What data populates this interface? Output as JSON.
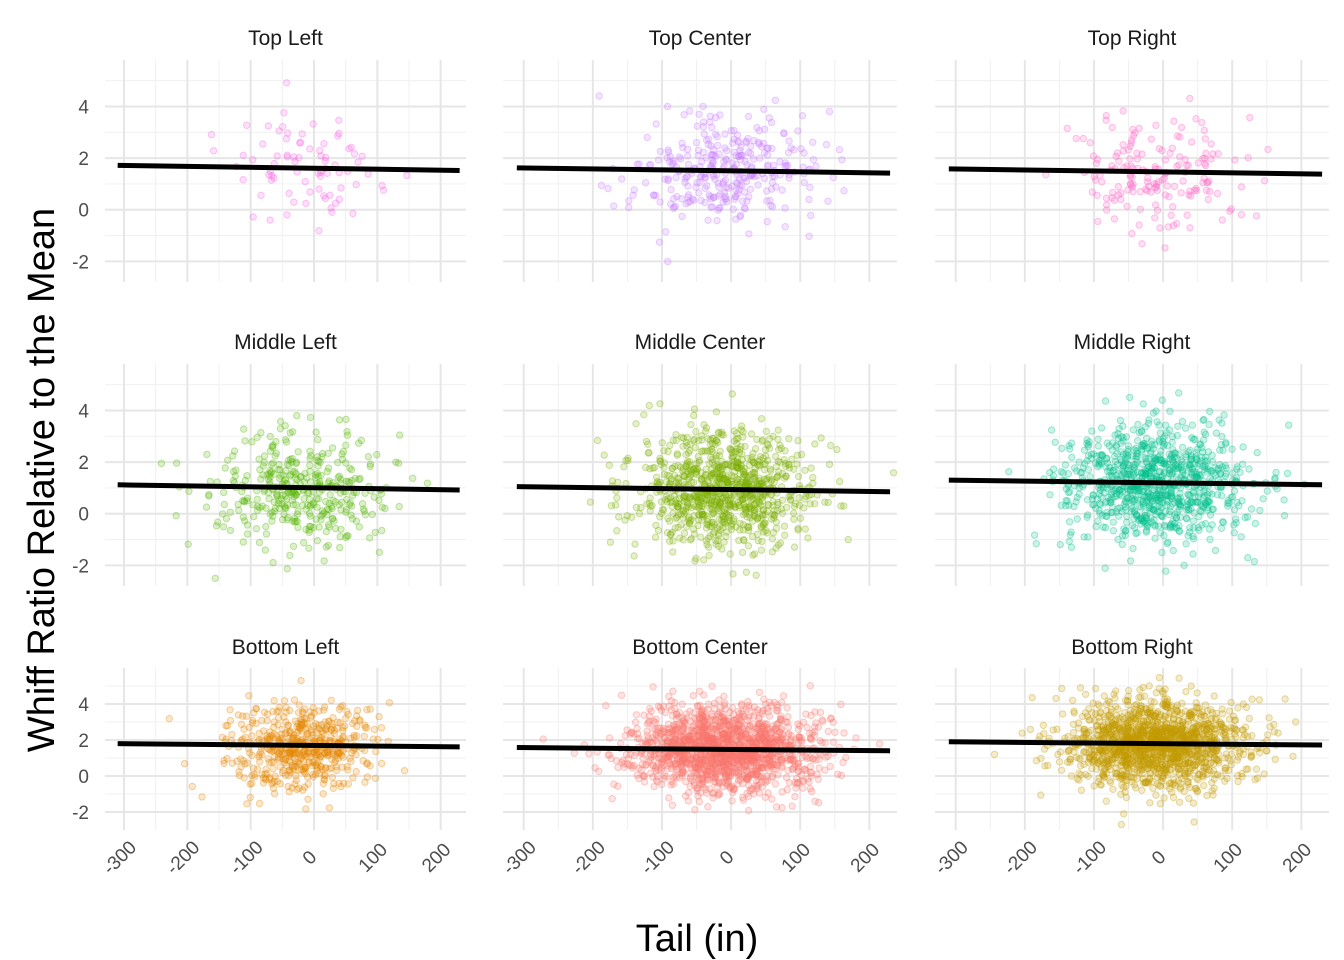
{
  "chart_data": {
    "type": "scatter",
    "xlabel": "Tail (in)",
    "ylabel": "Whiff Ratio Relative to the Mean",
    "x_ticks": [
      -300,
      -200,
      -100,
      0,
      100,
      200
    ],
    "x_tick_labels": [
      "-300",
      "-200",
      "-100",
      "0",
      "100",
      "200"
    ],
    "xlim": [
      -330,
      240
    ],
    "y_ticks": [
      -2,
      0,
      2,
      4
    ],
    "y_tick_labels": [
      "-2",
      "0",
      "2",
      "4"
    ],
    "grid": true,
    "point_opacity": 0.2,
    "panels": [
      {
        "title": "Top Left",
        "row": "Top",
        "col": "Left",
        "color": "#F564E3",
        "n_points": 80,
        "center": {
          "x": -10,
          "y": 1.6
        },
        "spread": {
          "x": 60,
          "y": 1.1
        },
        "ylim": [
          -2.8,
          5.8
        ],
        "fit": {
          "x": [
            -310,
            230
          ],
          "y": [
            1.72,
            1.52
          ]
        }
      },
      {
        "title": "Top Center",
        "row": "Top",
        "col": "Center",
        "color": "#C77CFF",
        "n_points": 320,
        "center": {
          "x": -10,
          "y": 1.5
        },
        "spread": {
          "x": 65,
          "y": 1.1
        },
        "ylim": [
          -2.8,
          5.8
        ],
        "fit": {
          "x": [
            -310,
            230
          ],
          "y": [
            1.62,
            1.42
          ]
        }
      },
      {
        "title": "Top Right",
        "row": "Top",
        "col": "Right",
        "color": "#FF61C3",
        "n_points": 170,
        "center": {
          "x": -10,
          "y": 1.3
        },
        "spread": {
          "x": 65,
          "y": 1.2
        },
        "ylim": [
          -2.8,
          5.8
        ],
        "fit": {
          "x": [
            -310,
            230
          ],
          "y": [
            1.58,
            1.38
          ]
        }
      },
      {
        "title": "Middle Left",
        "row": "Middle",
        "col": "Left",
        "color": "#53B400",
        "n_points": 380,
        "center": {
          "x": -15,
          "y": 1.0
        },
        "spread": {
          "x": 70,
          "y": 1.1
        },
        "ylim": [
          -2.8,
          5.8
        ],
        "fit": {
          "x": [
            -310,
            230
          ],
          "y": [
            1.12,
            0.92
          ]
        }
      },
      {
        "title": "Middle Center",
        "row": "Middle",
        "col": "Center",
        "color": "#7CAE00",
        "n_points": 900,
        "center": {
          "x": -10,
          "y": 0.9
        },
        "spread": {
          "x": 65,
          "y": 1.1
        },
        "ylim": [
          -2.8,
          5.8
        ],
        "fit": {
          "x": [
            -310,
            230
          ],
          "y": [
            1.05,
            0.85
          ]
        }
      },
      {
        "title": "Middle Right",
        "row": "Middle",
        "col": "Right",
        "color": "#00C08B",
        "n_points": 900,
        "center": {
          "x": -10,
          "y": 1.2
        },
        "spread": {
          "x": 65,
          "y": 1.1
        },
        "ylim": [
          -2.8,
          5.8
        ],
        "fit": {
          "x": [
            -310,
            230
          ],
          "y": [
            1.3,
            1.12
          ]
        }
      },
      {
        "title": "Bottom Left",
        "row": "Bottom",
        "col": "Left",
        "color": "#E58700",
        "n_points": 520,
        "center": {
          "x": -25,
          "y": 1.6
        },
        "spread": {
          "x": 60,
          "y": 1.2
        },
        "ylim": [
          -3.0,
          6.0
        ],
        "fit": {
          "x": [
            -310,
            230
          ],
          "y": [
            1.8,
            1.62
          ]
        }
      },
      {
        "title": "Bottom Center",
        "row": "Bottom",
        "col": "Center",
        "color": "#F8766D",
        "n_points": 1500,
        "center": {
          "x": -10,
          "y": 1.5
        },
        "spread": {
          "x": 65,
          "y": 1.2
        },
        "ylim": [
          -3.0,
          6.0
        ],
        "fit": {
          "x": [
            -310,
            230
          ],
          "y": [
            1.58,
            1.4
          ]
        }
      },
      {
        "title": "Bottom Right",
        "row": "Bottom",
        "col": "Right",
        "color": "#C49A00",
        "n_points": 1500,
        "center": {
          "x": -10,
          "y": 1.8
        },
        "spread": {
          "x": 65,
          "y": 1.2
        },
        "ylim": [
          -3.0,
          6.0
        ],
        "fit": {
          "x": [
            -310,
            230
          ],
          "y": [
            1.9,
            1.72
          ]
        }
      }
    ]
  }
}
